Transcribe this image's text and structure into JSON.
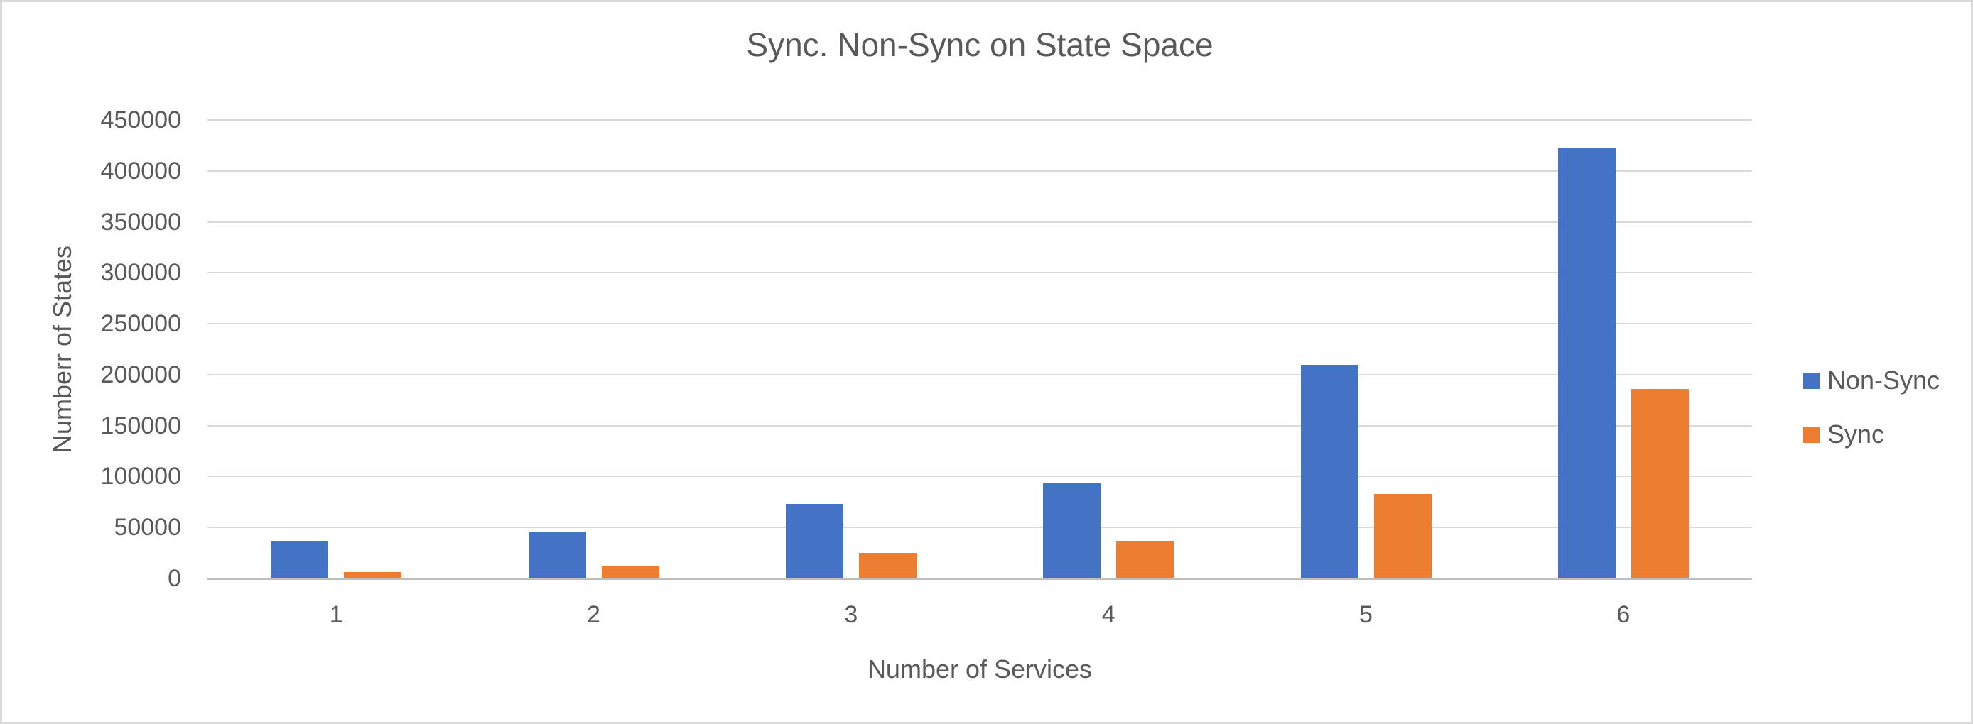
{
  "page": {
    "background": "#FFFFFF",
    "border_color": "#D9D9D9"
  },
  "chart_data": {
    "type": "bar",
    "title": "Sync. Non-Sync on State Space",
    "xlabel": "Number of Services",
    "ylabel": "Numberr of States",
    "categories": [
      "1",
      "2",
      "3",
      "4",
      "5",
      "6"
    ],
    "series": [
      {
        "name": "Non-Sync",
        "color": "#4472C4",
        "values": [
          37000,
          46000,
          73000,
          93000,
          210000,
          423000
        ]
      },
      {
        "name": "Sync",
        "color": "#ED7D31",
        "values": [
          6000,
          12000,
          25000,
          37000,
          83000,
          186000
        ]
      }
    ],
    "ylim": [
      0,
      450000
    ],
    "y_ticks": [
      0,
      50000,
      100000,
      150000,
      200000,
      250000,
      300000,
      350000,
      400000,
      450000
    ],
    "grid": true,
    "legend_position": "right",
    "colors": {
      "text": "#595959",
      "gridline": "#D9D9D9",
      "axis_line": "#BFBFBF"
    }
  }
}
